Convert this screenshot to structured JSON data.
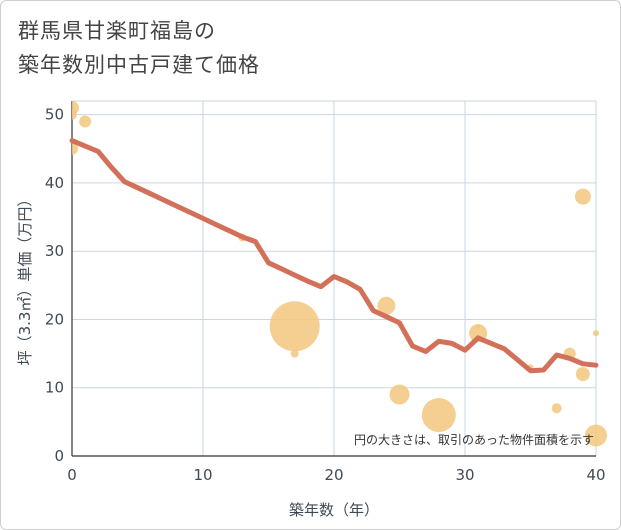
{
  "title_lines": [
    "群馬県甘楽町福島の",
    "築年数別中古戸建て価格"
  ],
  "chart_data": {
    "type": "scatter",
    "title": "群馬県甘楽町福島の 築年数別中古戸建て価格",
    "xlabel": "築年数（年）",
    "ylabel": "坪（3.3㎡）単価（万円）",
    "xlim": [
      0,
      40
    ],
    "ylim": [
      0,
      52
    ],
    "xticks": [
      0,
      10,
      20,
      30,
      40
    ],
    "yticks": [
      0,
      10,
      20,
      30,
      40,
      50
    ],
    "grid": true,
    "note": "円の大きさは、取引のあった物件面積を示す",
    "colors": {
      "bubble": "#f3c77e",
      "line": "#d3705a",
      "grid": "#c9d6e3"
    },
    "bubbles": [
      {
        "x": 0,
        "y": 51,
        "size": 14
      },
      {
        "x": 0,
        "y": 50,
        "size": 10
      },
      {
        "x": 0,
        "y": 45,
        "size": 12
      },
      {
        "x": 1,
        "y": 49,
        "size": 12
      },
      {
        "x": 13,
        "y": 32,
        "size": 8
      },
      {
        "x": 17,
        "y": 19,
        "size": 50
      },
      {
        "x": 17,
        "y": 15,
        "size": 8
      },
      {
        "x": 24,
        "y": 22,
        "size": 18
      },
      {
        "x": 25,
        "y": 9,
        "size": 20
      },
      {
        "x": 28,
        "y": 6,
        "size": 34
      },
      {
        "x": 31,
        "y": 18,
        "size": 18
      },
      {
        "x": 31,
        "y": 19,
        "size": 4
      },
      {
        "x": 35,
        "y": 13,
        "size": 6
      },
      {
        "x": 37,
        "y": 7,
        "size": 10
      },
      {
        "x": 38,
        "y": 15,
        "size": 12
      },
      {
        "x": 39,
        "y": 38,
        "size": 16
      },
      {
        "x": 39,
        "y": 12,
        "size": 14
      },
      {
        "x": 40,
        "y": 18,
        "size": 6
      },
      {
        "x": 40,
        "y": 3,
        "size": 22
      }
    ],
    "trend": {
      "x": [
        0,
        1,
        2,
        3,
        4,
        5,
        6,
        7,
        8,
        9,
        10,
        11,
        12,
        13,
        14,
        15,
        16,
        17,
        18,
        19,
        20,
        21,
        22,
        23,
        24,
        25,
        26,
        27,
        28,
        29,
        30,
        31,
        32,
        33,
        34,
        35,
        36,
        37,
        38,
        39,
        40
      ],
      "y": [
        46.2,
        45.4,
        44.6,
        42.3,
        40.2,
        39.3,
        38.4,
        37.5,
        36.6,
        35.7,
        34.8,
        33.9,
        33.0,
        32.1,
        31.4,
        28.3,
        27.4,
        26.5,
        25.6,
        24.8,
        26.3,
        25.5,
        24.4,
        21.3,
        20.4,
        19.5,
        16.1,
        15.3,
        16.8,
        16.5,
        15.5,
        17.3,
        16.5,
        15.7,
        14.1,
        12.5,
        12.6,
        14.8,
        14.3,
        13.5,
        13.3
      ]
    }
  }
}
